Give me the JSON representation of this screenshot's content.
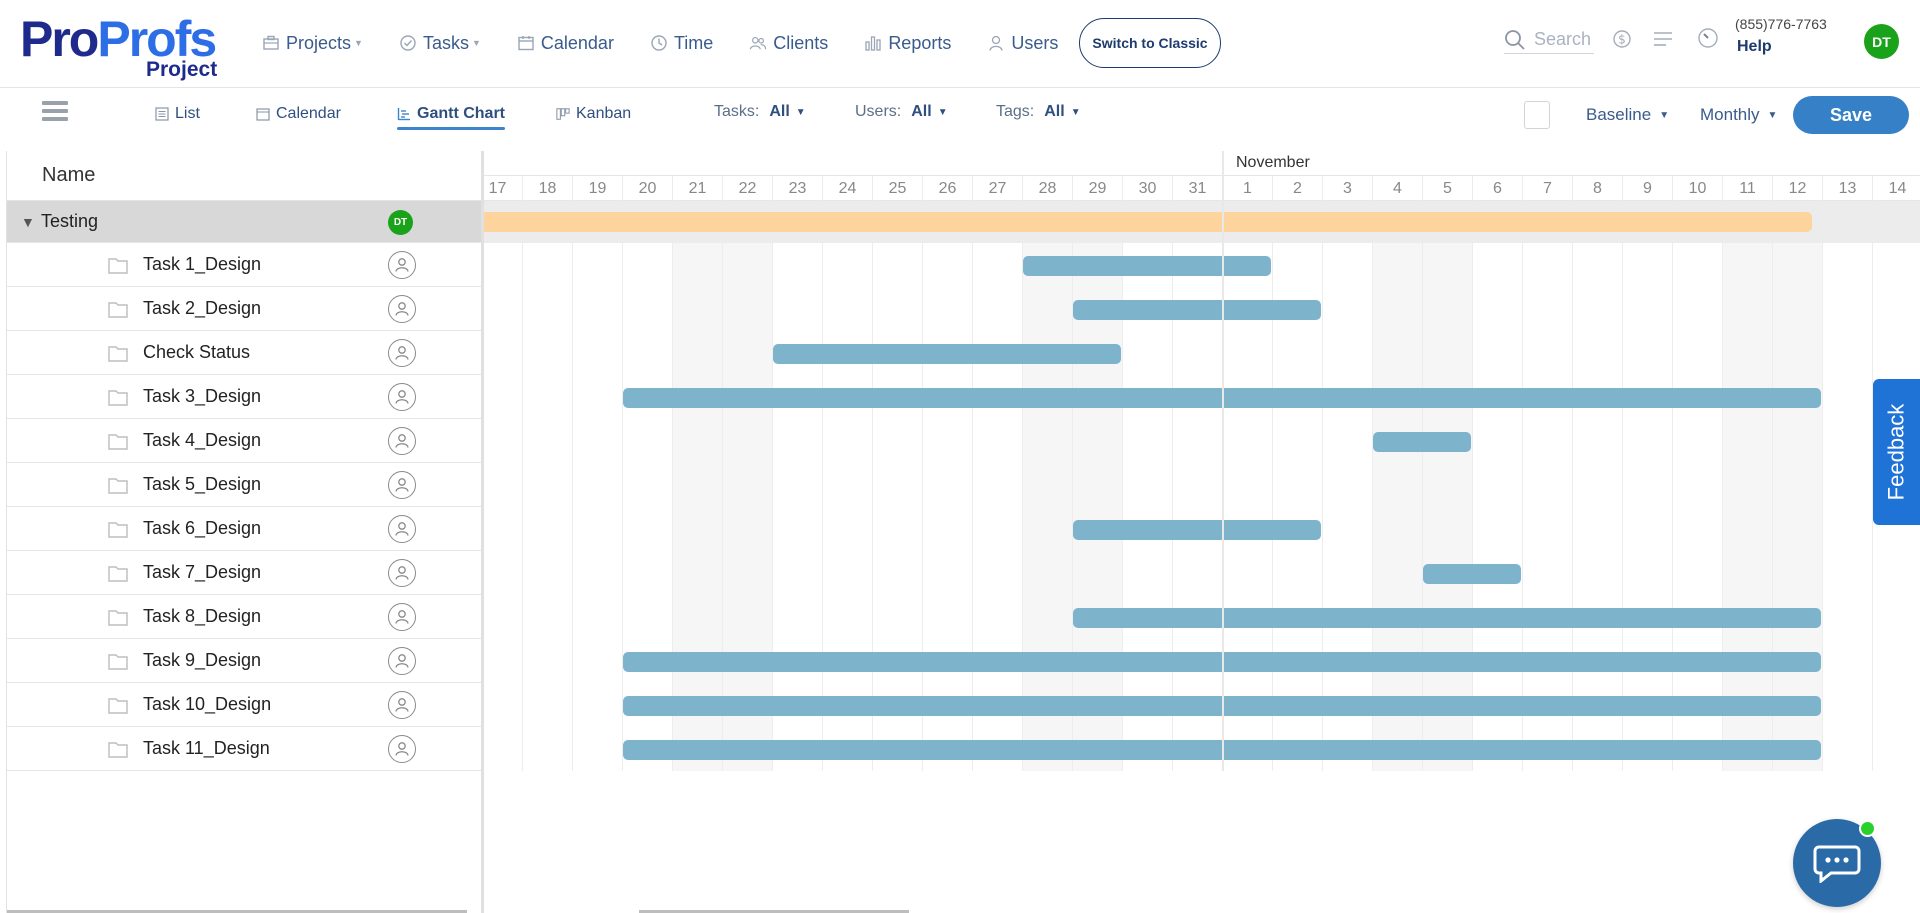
{
  "logo": {
    "brand_a": "Pro",
    "brand_b": "Profs",
    "sub": "Project"
  },
  "nav": {
    "items": [
      {
        "label": "Projects",
        "icon": "briefcase-icon",
        "caret": true
      },
      {
        "label": "Tasks",
        "icon": "check-circle-icon",
        "caret": true
      },
      {
        "label": "Calendar",
        "icon": "calendar-icon",
        "caret": false
      },
      {
        "label": "Time",
        "icon": "clock-icon",
        "caret": false
      },
      {
        "label": "Clients",
        "icon": "clients-icon",
        "caret": false
      },
      {
        "label": "Reports",
        "icon": "bar-chart-icon",
        "caret": false
      },
      {
        "label": "Users",
        "icon": "user-icon",
        "caret": false
      }
    ],
    "switch_label": "Switch to Classic",
    "search_placeholder": "Search",
    "phone": "(855)776-7763",
    "help": "Help",
    "avatar": "DT"
  },
  "toolbar": {
    "views": [
      "List",
      "Calendar",
      "Gantt Chart",
      "Kanban"
    ],
    "active_view": "Gantt Chart",
    "filters": [
      {
        "label": "Tasks:",
        "value": "All"
      },
      {
        "label": "Users:",
        "value": "All"
      },
      {
        "label": "Tags:",
        "value": "All"
      }
    ],
    "baseline": "Baseline",
    "period": "Monthly",
    "save": "Save"
  },
  "grid": {
    "name_header": "Name",
    "group": {
      "name": "Testing",
      "avatar": "DT"
    },
    "tasks": [
      "Task 1_Design",
      "Task 2_Design",
      "Check Status",
      "Task 3_Design",
      "Task 4_Design",
      "Task 5_Design",
      "Task 6_Design",
      "Task 7_Design",
      "Task 8_Design",
      "Task 9_Design",
      "Task 10_Design",
      "Task 11_Design"
    ]
  },
  "gantt": {
    "month_label": "November",
    "days": [
      "17",
      "18",
      "19",
      "20",
      "21",
      "22",
      "23",
      "24",
      "25",
      "26",
      "27",
      "28",
      "29",
      "30",
      "31",
      "1",
      "2",
      "3",
      "4",
      "5",
      "6",
      "7",
      "8",
      "9",
      "10",
      "11",
      "12",
      "13",
      "14"
    ],
    "weekend_days": [
      "21",
      "22",
      "28",
      "29",
      "4",
      "5",
      "11",
      "12"
    ],
    "summary_bar": {
      "start": "17",
      "end": "13"
    },
    "task_bars": [
      {
        "task": "Task 1_Design",
        "start": "28",
        "end": "2"
      },
      {
        "task": "Task 2_Design",
        "start": "29",
        "end": "3"
      },
      {
        "task": "Check Status",
        "start": "23",
        "end": "30"
      },
      {
        "task": "Task 3_Design",
        "start": "20",
        "end": "13"
      },
      {
        "task": "Task 4_Design",
        "start": "4",
        "end": "6"
      },
      {
        "task": "Task 5_Design",
        "start": null,
        "end": null
      },
      {
        "task": "Task 6_Design",
        "start": "29",
        "end": "3"
      },
      {
        "task": "Task 7_Design",
        "start": "5",
        "end": "7"
      },
      {
        "task": "Task 8_Design",
        "start": "29",
        "end": "13"
      },
      {
        "task": "Task 9_Design",
        "start": "20",
        "end": "13"
      },
      {
        "task": "Task 10_Design",
        "start": "20",
        "end": "13"
      },
      {
        "task": "Task 11_Design",
        "start": "20",
        "end": "13"
      }
    ],
    "colors": {
      "task_bar": "#7eb3cc",
      "summary_bar": "#fdd49e"
    }
  },
  "feedback": "Feedback"
}
